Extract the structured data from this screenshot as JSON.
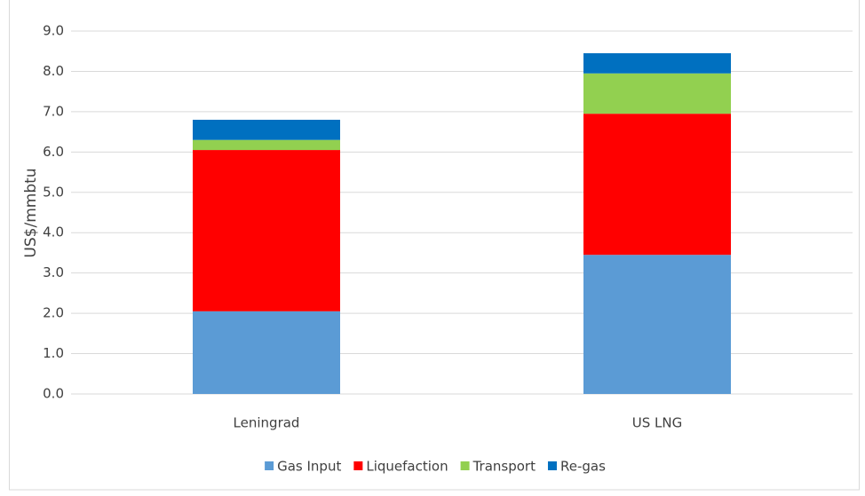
{
  "chart_data": {
    "type": "stacked_bar",
    "y_label": "US$/mmbtu",
    "categories": [
      "Leningrad",
      "US LNG"
    ],
    "series": [
      {
        "name": "Gas Input",
        "color": "#5b9bd5",
        "values": [
          2.05,
          3.45
        ]
      },
      {
        "name": "Liquefaction",
        "color": "#ff0000",
        "values": [
          4.0,
          3.5
        ]
      },
      {
        "name": "Transport",
        "color": "#92d050",
        "values": [
          0.25,
          1.0
        ]
      },
      {
        "name": "Re-gas",
        "color": "#0070c0",
        "values": [
          0.5,
          0.5
        ]
      }
    ],
    "ylim": [
      0,
      9
    ],
    "yticks": [
      {
        "value": 0,
        "label": "0.0"
      },
      {
        "value": 1,
        "label": "1.0"
      },
      {
        "value": 2,
        "label": "2.0"
      },
      {
        "value": 3,
        "label": "3.0"
      },
      {
        "value": 4,
        "label": "4.0"
      },
      {
        "value": 5,
        "label": "5.0"
      },
      {
        "value": 6,
        "label": "6.0"
      },
      {
        "value": 7,
        "label": "7.0"
      },
      {
        "value": 8,
        "label": "8.0"
      },
      {
        "value": 9,
        "label": "9.0"
      }
    ],
    "grid": true,
    "legend": "bottom"
  }
}
